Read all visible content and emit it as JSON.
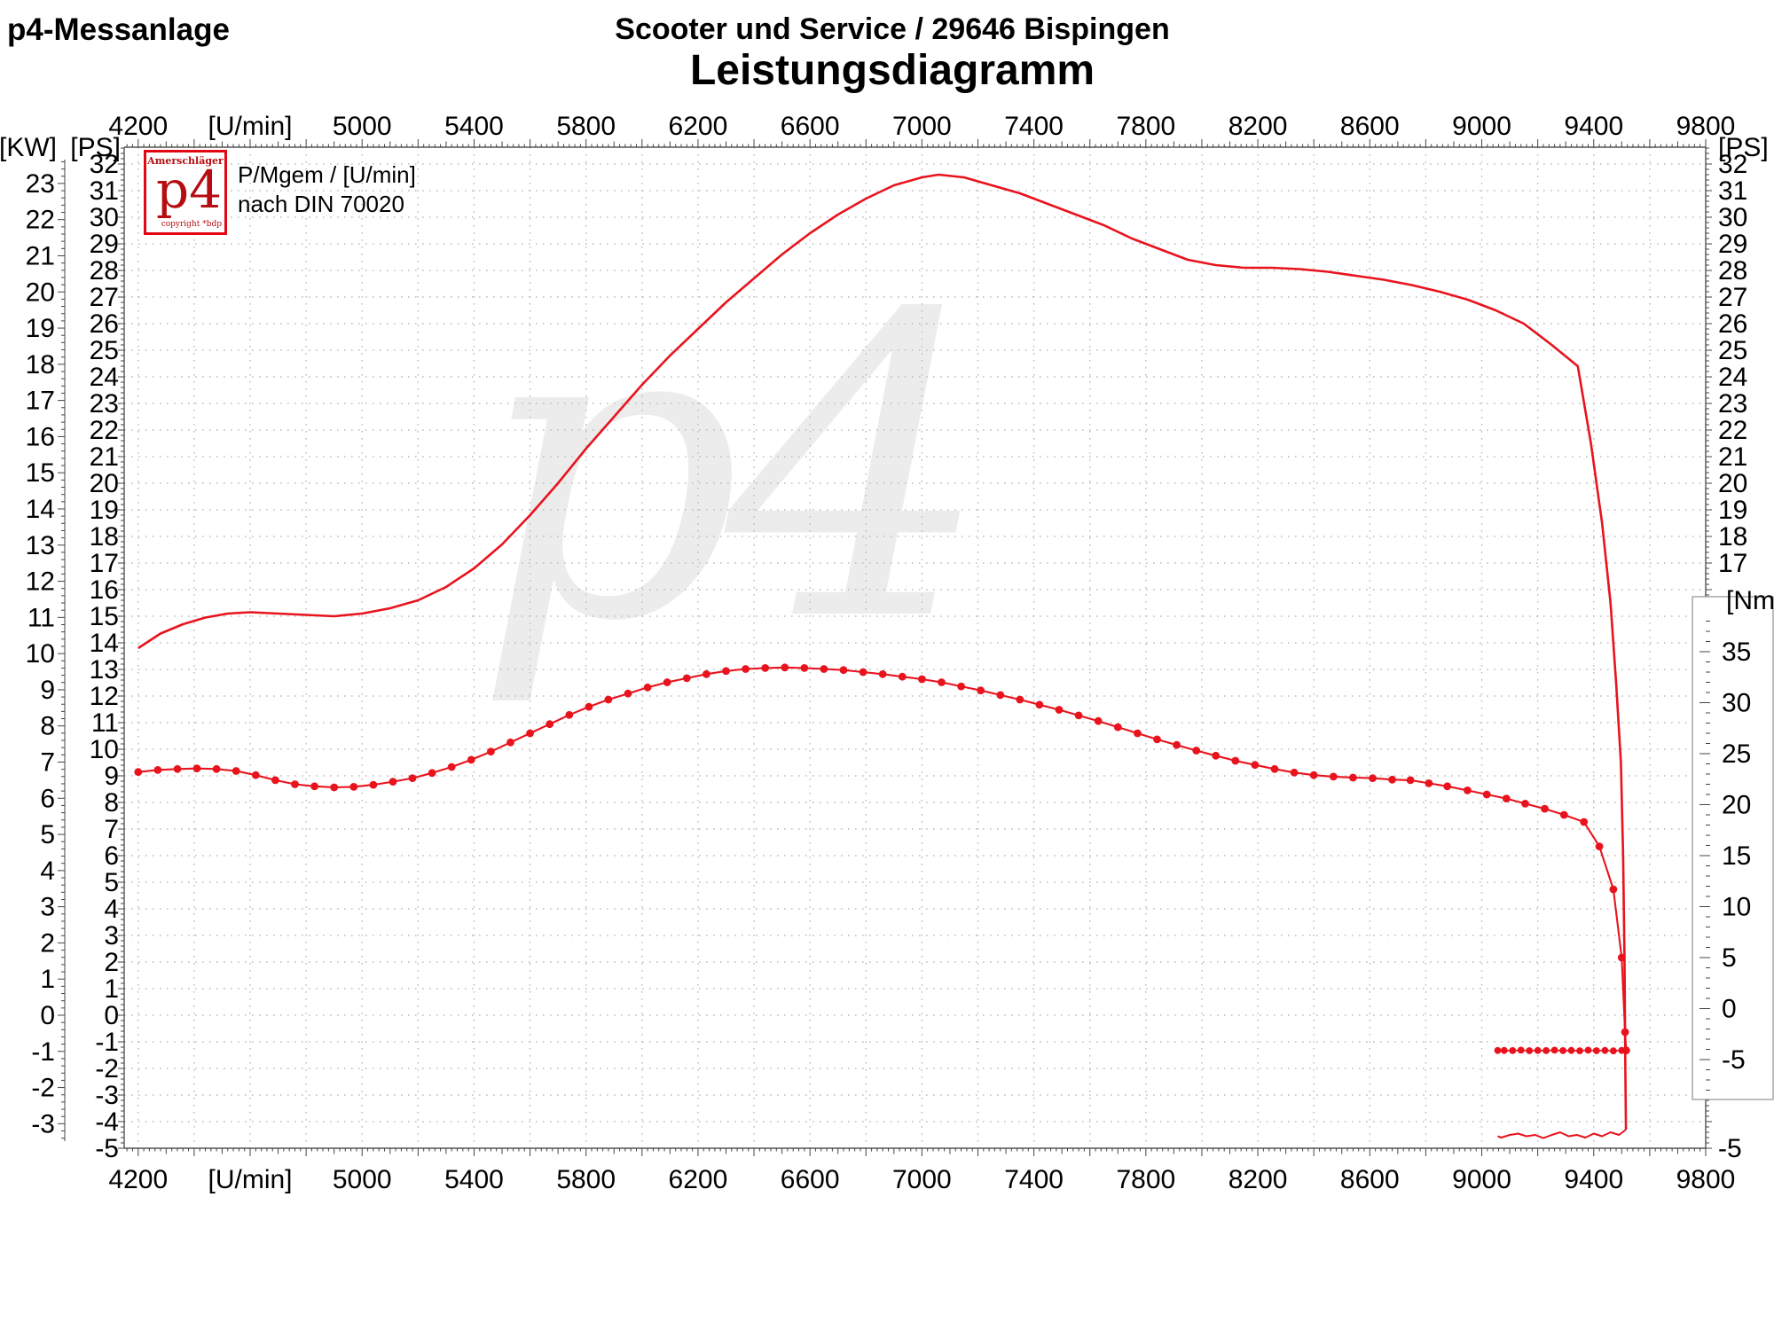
{
  "header": {
    "app": "p4-Messanlage",
    "shop": "Scooter und Service / 29646 Bispingen",
    "title": "Leistungsdiagramm"
  },
  "legend": {
    "line1": "P/Mgem / [U/min]",
    "line2": "nach DIN 70020"
  },
  "logo": {
    "top": "Amerschläger",
    "main": "p4",
    "bottom": "copyright *bdp"
  },
  "watermark": {
    "text": "p4"
  },
  "colors": {
    "curve": "#e8131d",
    "logo_red": "#b50d11",
    "logo_border": "#e30613",
    "grid": "#bcbcbc",
    "axis": "#555555",
    "tick": "#444444",
    "text": "#000000",
    "watermark": "#ececec",
    "nm_box_border": "#999999"
  },
  "axes": {
    "x": {
      "unit": "[U/min]",
      "labels": [
        {
          "rpm": 4200,
          "text": "4200"
        },
        {
          "rpm": 4600,
          "text": "[U/min]"
        },
        {
          "rpm": 5000,
          "text": "5000"
        },
        {
          "rpm": 5400,
          "text": "5400"
        },
        {
          "rpm": 5800,
          "text": "5800"
        },
        {
          "rpm": 6200,
          "text": "6200"
        },
        {
          "rpm": 6600,
          "text": "6600"
        },
        {
          "rpm": 7000,
          "text": "7000"
        },
        {
          "rpm": 7400,
          "text": "7400"
        },
        {
          "rpm": 7800,
          "text": "7800"
        },
        {
          "rpm": 8200,
          "text": "8200"
        },
        {
          "rpm": 8600,
          "text": "8600"
        },
        {
          "rpm": 9000,
          "text": "9000"
        },
        {
          "rpm": 9400,
          "text": "9400"
        },
        {
          "rpm": 9800,
          "text": "9800"
        }
      ]
    },
    "left_kw": {
      "unit": "[KW]",
      "values": [
        23,
        22,
        21,
        20,
        19,
        18,
        17,
        16,
        15,
        14,
        13,
        12,
        11,
        10,
        9,
        8,
        7,
        6,
        5,
        4,
        3,
        2,
        1,
        0,
        -1,
        -2,
        -3
      ]
    },
    "left_ps": {
      "unit": "[PS]",
      "values": [
        32,
        31,
        30,
        29,
        28,
        27,
        26,
        25,
        24,
        23,
        22,
        21,
        20,
        19,
        18,
        17,
        16,
        15,
        14,
        13,
        12,
        11,
        10,
        9,
        8,
        7,
        6,
        5,
        4,
        3,
        2,
        1,
        0,
        -1,
        -2,
        -3,
        -4,
        -5
      ]
    },
    "right_ps": {
      "unit": "[PS]",
      "values": [
        32,
        31,
        30,
        29,
        28,
        27,
        26,
        25,
        24,
        23,
        22,
        21,
        20,
        19,
        18,
        17,
        -5
      ]
    },
    "nm": {
      "unit": "[Nm]",
      "values": [
        35,
        30,
        25,
        20,
        15,
        10,
        5,
        0,
        -5
      ]
    }
  },
  "chart_data": {
    "type": "line",
    "title": "Leistungsdiagramm",
    "xlabel": "[U/min]",
    "x_range": [
      4200,
      9800
    ],
    "ps_range": [
      -5,
      32.6
    ],
    "kw_range": [
      -3,
      23
    ],
    "nm_range": [
      -5,
      35
    ],
    "grid": true,
    "legend_text": [
      "P/Mgem / [U/min]",
      "nach DIN 70020"
    ],
    "series": [
      {
        "name": "power",
        "unit": "PS",
        "marker": false,
        "points": [
          [
            4200,
            13.8
          ],
          [
            4280,
            14.35
          ],
          [
            4360,
            14.7
          ],
          [
            4440,
            14.95
          ],
          [
            4520,
            15.1
          ],
          [
            4600,
            15.15
          ],
          [
            4700,
            15.1
          ],
          [
            4800,
            15.05
          ],
          [
            4900,
            15.0
          ],
          [
            5000,
            15.1
          ],
          [
            5100,
            15.3
          ],
          [
            5200,
            15.6
          ],
          [
            5300,
            16.1
          ],
          [
            5400,
            16.8
          ],
          [
            5500,
            17.7
          ],
          [
            5600,
            18.8
          ],
          [
            5700,
            20.0
          ],
          [
            5800,
            21.3
          ],
          [
            5900,
            22.5
          ],
          [
            6000,
            23.7
          ],
          [
            6100,
            24.8
          ],
          [
            6200,
            25.8
          ],
          [
            6300,
            26.8
          ],
          [
            6400,
            27.7
          ],
          [
            6500,
            28.6
          ],
          [
            6600,
            29.4
          ],
          [
            6700,
            30.1
          ],
          [
            6800,
            30.7
          ],
          [
            6900,
            31.2
          ],
          [
            7000,
            31.5
          ],
          [
            7060,
            31.6
          ],
          [
            7150,
            31.5
          ],
          [
            7250,
            31.2
          ],
          [
            7350,
            30.9
          ],
          [
            7450,
            30.5
          ],
          [
            7550,
            30.1
          ],
          [
            7650,
            29.7
          ],
          [
            7750,
            29.2
          ],
          [
            7850,
            28.8
          ],
          [
            7950,
            28.4
          ],
          [
            8050,
            28.2
          ],
          [
            8150,
            28.1
          ],
          [
            8250,
            28.1
          ],
          [
            8350,
            28.05
          ],
          [
            8450,
            27.95
          ],
          [
            8550,
            27.8
          ],
          [
            8650,
            27.65
          ],
          [
            8750,
            27.45
          ],
          [
            8850,
            27.2
          ],
          [
            8950,
            26.9
          ],
          [
            9050,
            26.5
          ],
          [
            9150,
            26.0
          ],
          [
            9250,
            25.2
          ],
          [
            9343,
            24.4
          ],
          [
            9390,
            21.5
          ],
          [
            9430,
            18.5
          ],
          [
            9460,
            15.5
          ],
          [
            9480,
            12.5
          ],
          [
            9497,
            9.5
          ],
          [
            9505,
            6.0
          ],
          [
            9510,
            2.0
          ],
          [
            9513,
            -2.0
          ],
          [
            9515,
            -4.3
          ]
        ]
      },
      {
        "name": "torque",
        "unit": "Nm",
        "marker": true,
        "points": [
          [
            4200,
            23.2
          ],
          [
            4270,
            23.4
          ],
          [
            4340,
            23.5
          ],
          [
            4410,
            23.55
          ],
          [
            4480,
            23.5
          ],
          [
            4550,
            23.3
          ],
          [
            4620,
            22.9
          ],
          [
            4690,
            22.4
          ],
          [
            4760,
            22.0
          ],
          [
            4830,
            21.8
          ],
          [
            4900,
            21.7
          ],
          [
            4970,
            21.75
          ],
          [
            5040,
            21.95
          ],
          [
            5110,
            22.25
          ],
          [
            5180,
            22.6
          ],
          [
            5250,
            23.1
          ],
          [
            5320,
            23.7
          ],
          [
            5390,
            24.4
          ],
          [
            5460,
            25.2
          ],
          [
            5530,
            26.1
          ],
          [
            5600,
            27.0
          ],
          [
            5670,
            27.9
          ],
          [
            5740,
            28.8
          ],
          [
            5810,
            29.6
          ],
          [
            5880,
            30.3
          ],
          [
            5950,
            30.9
          ],
          [
            6020,
            31.5
          ],
          [
            6090,
            32.0
          ],
          [
            6160,
            32.4
          ],
          [
            6230,
            32.8
          ],
          [
            6300,
            33.1
          ],
          [
            6370,
            33.3
          ],
          [
            6440,
            33.4
          ],
          [
            6510,
            33.45
          ],
          [
            6580,
            33.4
          ],
          [
            6650,
            33.3
          ],
          [
            6720,
            33.2
          ],
          [
            6790,
            33.0
          ],
          [
            6860,
            32.8
          ],
          [
            6930,
            32.55
          ],
          [
            7000,
            32.3
          ],
          [
            7070,
            32.0
          ],
          [
            7140,
            31.6
          ],
          [
            7210,
            31.2
          ],
          [
            7280,
            30.75
          ],
          [
            7350,
            30.3
          ],
          [
            7420,
            29.8
          ],
          [
            7490,
            29.3
          ],
          [
            7560,
            28.75
          ],
          [
            7630,
            28.2
          ],
          [
            7700,
            27.6
          ],
          [
            7770,
            27.0
          ],
          [
            7840,
            26.4
          ],
          [
            7910,
            25.85
          ],
          [
            7980,
            25.3
          ],
          [
            8050,
            24.8
          ],
          [
            8120,
            24.3
          ],
          [
            8190,
            23.9
          ],
          [
            8260,
            23.5
          ],
          [
            8330,
            23.15
          ],
          [
            8400,
            22.9
          ],
          [
            8470,
            22.75
          ],
          [
            8540,
            22.65
          ],
          [
            8610,
            22.6
          ],
          [
            8680,
            22.45
          ],
          [
            8745,
            22.4
          ],
          [
            8811,
            22.1
          ],
          [
            8877,
            21.8
          ],
          [
            8949,
            21.4
          ],
          [
            9018,
            21.0
          ],
          [
            9088,
            20.6
          ],
          [
            9155,
            20.1
          ],
          [
            9225,
            19.6
          ],
          [
            9294,
            19.0
          ],
          [
            9365,
            18.3
          ],
          [
            9420,
            15.9
          ],
          [
            9470,
            11.7
          ],
          [
            9500,
            5.0
          ],
          [
            9512,
            -2.3
          ],
          [
            9516,
            -4.1
          ]
        ]
      },
      {
        "name": "drag-power",
        "unit": "PS",
        "marker": false,
        "points": [
          [
            9515,
            -4.3
          ],
          [
            9490,
            -4.5
          ],
          [
            9460,
            -4.4
          ],
          [
            9430,
            -4.55
          ],
          [
            9400,
            -4.45
          ],
          [
            9370,
            -4.6
          ],
          [
            9340,
            -4.5
          ],
          [
            9310,
            -4.55
          ],
          [
            9280,
            -4.4
          ],
          [
            9250,
            -4.5
          ],
          [
            9220,
            -4.62
          ],
          [
            9190,
            -4.5
          ],
          [
            9160,
            -4.55
          ],
          [
            9130,
            -4.45
          ],
          [
            9100,
            -4.5
          ],
          [
            9070,
            -4.6
          ],
          [
            9057,
            -4.55
          ]
        ]
      },
      {
        "name": "drag-torque",
        "unit": "Nm",
        "marker": true,
        "points": [
          [
            9500,
            -4.1
          ],
          [
            9470,
            -4.15
          ],
          [
            9440,
            -4.1
          ],
          [
            9410,
            -4.13
          ],
          [
            9380,
            -4.08
          ],
          [
            9350,
            -4.14
          ],
          [
            9320,
            -4.1
          ],
          [
            9290,
            -4.12
          ],
          [
            9260,
            -4.08
          ],
          [
            9230,
            -4.12
          ],
          [
            9200,
            -4.1
          ],
          [
            9170,
            -4.13
          ],
          [
            9140,
            -4.08
          ],
          [
            9110,
            -4.12
          ],
          [
            9080,
            -4.1
          ],
          [
            9057,
            -4.11
          ]
        ]
      }
    ]
  }
}
